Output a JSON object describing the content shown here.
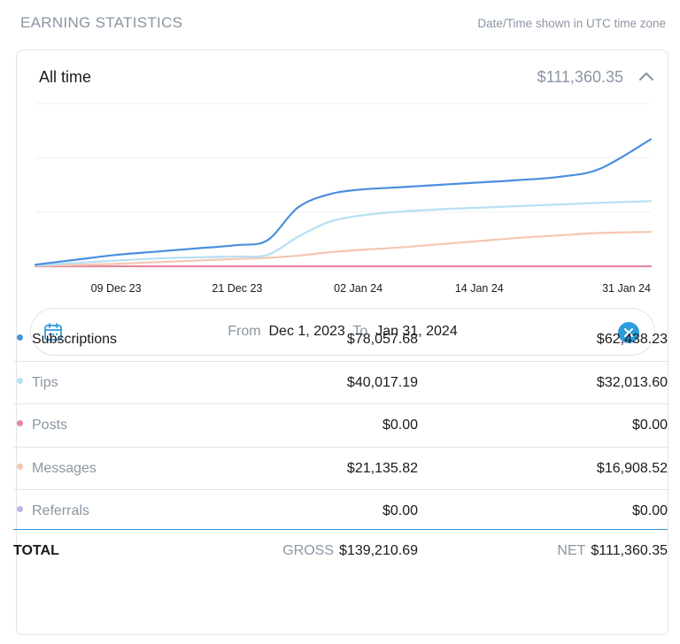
{
  "header": {
    "title": "EARNING STATISTICS",
    "timezone_note": "Date/Time shown in UTC time zone"
  },
  "card": {
    "period": "All time",
    "total_amount": "$111,360.35",
    "collapse_icon": "chevron-up-icon"
  },
  "date_range": {
    "from_label": "From",
    "from_value": "Dec 1, 2023",
    "to_label": "To",
    "to_value": "Jan 31, 2024",
    "calendar_icon": "calendar-icon",
    "clear_icon": "close-circle-icon"
  },
  "colors": {
    "subscriptions": "#4a8fdf",
    "tips": "#b6e0f2",
    "posts": "#e2889e",
    "messages": "#f5c6b2",
    "referrals": "#c2b3e6",
    "accent": "#2d9cdb"
  },
  "chart_data": {
    "type": "line",
    "x_ticks": [
      "09 Dec 23",
      "21 Dec 23",
      "02 Jan 24",
      "14 Jan 24",
      "31 Jan 24"
    ],
    "x": [
      "2023-12-01",
      "2023-12-05",
      "2023-12-09",
      "2023-12-13",
      "2023-12-17",
      "2023-12-21",
      "2023-12-24",
      "2023-12-27",
      "2023-12-30",
      "2024-01-02",
      "2024-01-06",
      "2024-01-10",
      "2024-01-14",
      "2024-01-18",
      "2024-01-22",
      "2024-01-26",
      "2024-01-31"
    ],
    "ylim": [
      0,
      100000
    ],
    "grid": true,
    "series": [
      {
        "name": "Subscriptions",
        "color": "#4a8fdf",
        "values": [
          1000,
          4000,
          7000,
          9000,
          11000,
          13000,
          16000,
          36000,
          44000,
          47000,
          48500,
          50000,
          51500,
          53000,
          55000,
          60000,
          78000
        ]
      },
      {
        "name": "Tips",
        "color": "#b6e0f2",
        "values": [
          600,
          2000,
          3500,
          4800,
          5500,
          6000,
          7000,
          18000,
          27000,
          31000,
          33500,
          35000,
          36000,
          37000,
          38000,
          39000,
          40000
        ]
      },
      {
        "name": "Messages",
        "color": "#f5c6b2",
        "values": [
          300,
          800,
          1500,
          2500,
          3500,
          4500,
          5200,
          6500,
          8500,
          10000,
          11500,
          13500,
          15500,
          17500,
          19000,
          20500,
          21100
        ]
      },
      {
        "name": "Posts",
        "color": "#e2889e",
        "values": [
          0,
          0,
          0,
          0,
          0,
          0,
          0,
          0,
          0,
          0,
          0,
          0,
          0,
          0,
          0,
          0,
          0
        ]
      }
    ]
  },
  "rows": [
    {
      "key": "subscriptions",
      "label": "Subscriptions",
      "gross": "$78,057.68",
      "net": "$62,438.23"
    },
    {
      "key": "tips",
      "label": "Tips",
      "gross": "$40,017.19",
      "net": "$32,013.60"
    },
    {
      "key": "posts",
      "label": "Posts",
      "gross": "$0.00",
      "net": "$0.00"
    },
    {
      "key": "messages",
      "label": "Messages",
      "gross": "$21,135.82",
      "net": "$16,908.52"
    },
    {
      "key": "referrals",
      "label": "Referrals",
      "gross": "$0.00",
      "net": "$0.00"
    }
  ],
  "total": {
    "label": "TOTAL",
    "gross_label": "GROSS",
    "gross_value": "$139,210.69",
    "net_label": "NET",
    "net_value": "$111,360.35"
  }
}
